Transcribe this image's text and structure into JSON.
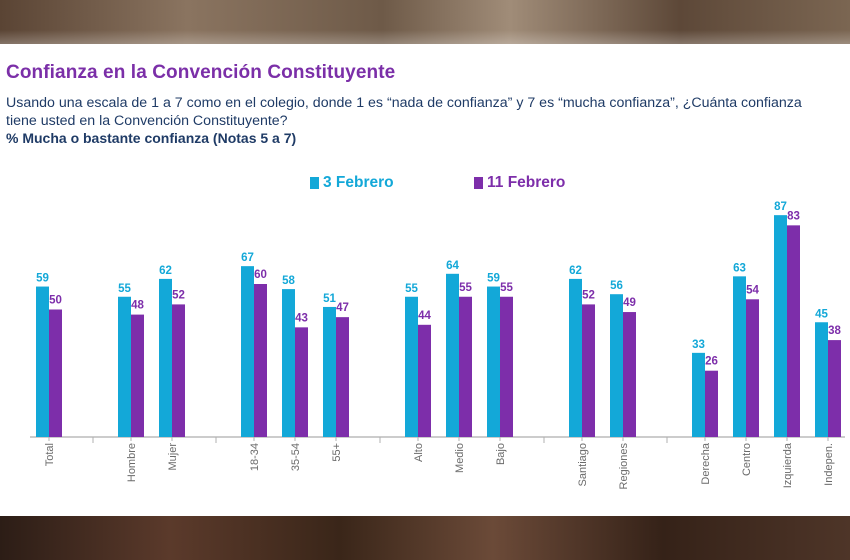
{
  "slide": {
    "title": "Confianza en la Convención Constituyente",
    "question": "Usando una escala de 1 a 7 como en el colegio, donde 1 es “nada de confianza” y 7 es “mucha confianza”, ¿Cuánta confianza tiene usted en la Convención Constituyente?",
    "note": "% Mucha o bastante confianza (Notas 5 a 7)"
  },
  "chart_data": {
    "type": "bar",
    "title": "Confianza en la Convención Constituyente",
    "ylabel": "% Mucha o bastante confianza (Notas 5 a 7)",
    "ylim": [
      0,
      100
    ],
    "grid": false,
    "legend_position": "top-center",
    "categories": [
      "Total",
      "Hombre",
      "Mujer",
      "18-34",
      "35-54",
      "55+",
      "Alto",
      "Medio",
      "Bajo",
      "Santiago",
      "Regiones",
      "Derecha",
      "Centro",
      "Izquierda",
      "Indepen."
    ],
    "series": [
      {
        "name": "3 Febrero",
        "color": "#13a8d8",
        "values": [
          59,
          55,
          62,
          67,
          58,
          51,
          55,
          64,
          59,
          62,
          56,
          33,
          63,
          87,
          45
        ]
      },
      {
        "name": "11 Febrero",
        "color": "#7d2eaa",
        "values": [
          50,
          48,
          52,
          60,
          43,
          47,
          44,
          55,
          55,
          52,
          49,
          26,
          54,
          83,
          38
        ]
      }
    ]
  }
}
